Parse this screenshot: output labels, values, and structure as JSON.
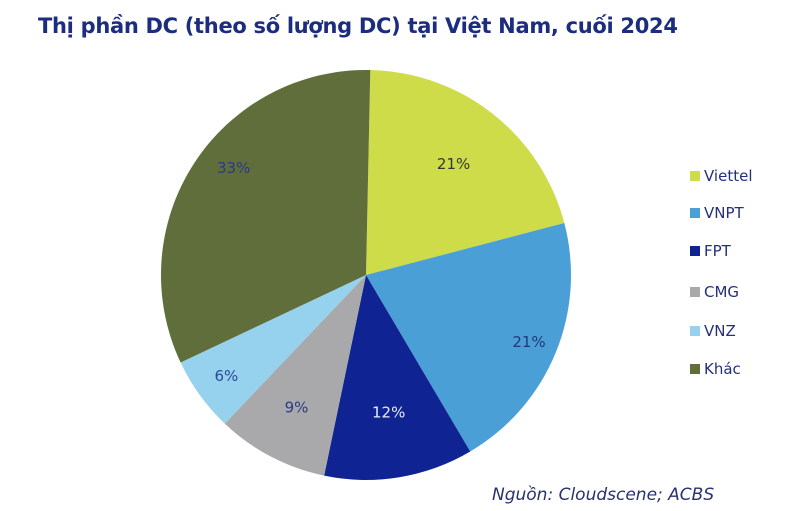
{
  "title": "Thị phần DC (theo số lượng DC) tại Việt Nam, cuối 2024",
  "source": "Nguồn: Cloudscene; ACBS",
  "chart_data": {
    "type": "pie",
    "title": "Thị phần DC (theo số lượng DC) tại Việt Nam, cuối 2024",
    "categories": [
      "Viettel",
      "VNPT",
      "FPT",
      "CMG",
      "VNZ",
      "Khác"
    ],
    "values": [
      21,
      21,
      12,
      9,
      6,
      33
    ],
    "labels": [
      "21%",
      "21%",
      "12%",
      "9%",
      "6%",
      "33%"
    ],
    "colors": [
      "#cedc4a",
      "#4a9fd6",
      "#0f2393",
      "#a9a9ab",
      "#96d1ee",
      "#5f6e3a"
    ],
    "label_colors": [
      "#2e3a2a",
      "#1f3a7a",
      "#e8ecf8",
      "#2a3a86",
      "#2a4a9a",
      "#2a3a86"
    ],
    "start_angle_deg": 0,
    "direction": "clockwise",
    "legend_position": "right",
    "source": "Nguồn: Cloudscene; ACBS"
  },
  "legend": [
    {
      "label": "Viettel",
      "color": "#cedc4a"
    },
    {
      "label": "VNPT",
      "color": "#4a9fd6"
    },
    {
      "label": "FPT",
      "color": "#0f2393"
    },
    {
      "label": "CMG",
      "color": "#a9a9ab"
    },
    {
      "label": "VNZ",
      "color": "#96d1ee"
    },
    {
      "label": "Khác",
      "color": "#5f6e3a"
    }
  ]
}
